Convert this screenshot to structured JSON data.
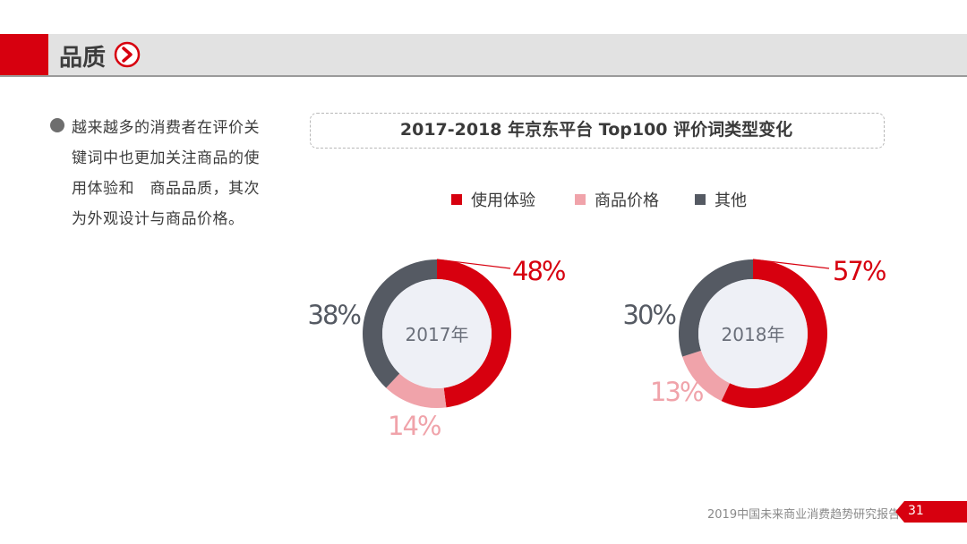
{
  "header": {
    "title": "品质"
  },
  "bullet": {
    "text": "越来越多的消费者在评价关键词中也更加关注商品的使用体验和　商品品质，其次为外观设计与商品价格。"
  },
  "colors": {
    "red": "#d7000f",
    "pink": "#f0a3aa",
    "gray": "#555a63",
    "center": "#eef0f6"
  },
  "chart_data": {
    "type": "pie",
    "title": "2017-2018 年京东平台 Top100 评价词类型变化",
    "legend": [
      "使用体验",
      "商品价格",
      "其他"
    ],
    "legend_position": "top",
    "charts": [
      {
        "center_label": "2017年",
        "slices": [
          {
            "name": "使用体验",
            "value": 48,
            "label": "48%"
          },
          {
            "name": "商品价格",
            "value": 14,
            "label": "14%"
          },
          {
            "name": "其他",
            "value": 38,
            "label": "38%"
          }
        ]
      },
      {
        "center_label": "2018年",
        "slices": [
          {
            "name": "使用体验",
            "value": 57,
            "label": "57%"
          },
          {
            "name": "商品价格",
            "value": 13,
            "label": "13%"
          },
          {
            "name": "其他",
            "value": 30,
            "label": "30%"
          }
        ]
      }
    ]
  },
  "footer": {
    "text": "2019中国未来商业消费趋势研究报告",
    "page": "31"
  }
}
